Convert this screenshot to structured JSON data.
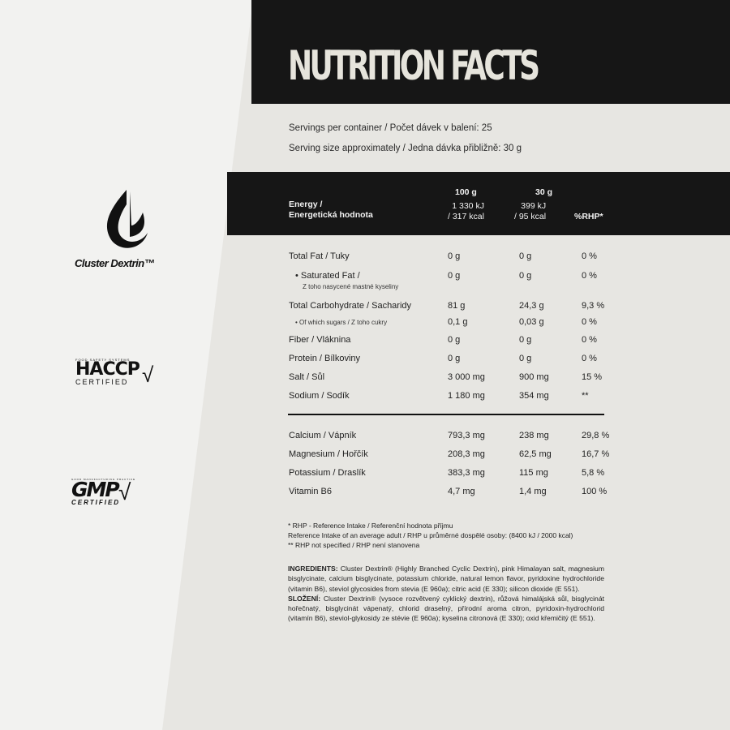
{
  "title": "NUTRITION FACTS",
  "servings_per_container": "Servings per container / Počet dávek v balení: 25",
  "serving_size": "Serving size approximately / Jedna dávka přibližně: 30 g",
  "header": {
    "energy_line1": "Energy /",
    "energy_line2": "Energetická hodnota",
    "col_100g": "100 g",
    "col_30g": "30 g",
    "energy_100g_kj": "1 330 kJ",
    "energy_100g_kcal": "/ 317 kcal",
    "energy_30g_kj": "399 kJ",
    "energy_30g_kcal": "/ 95 kcal",
    "col_rhp": "%RHP*"
  },
  "rows": [
    {
      "label": "Total Fat / Tuky",
      "v100": "0 g",
      "v30": "0 g",
      "rhp": "0 %"
    },
    {
      "label": "• Saturated Fat /",
      "sublabel": "Z toho nasycené mastné kyseliny",
      "v100": "0 g",
      "v30": "0 g",
      "rhp": "0 %"
    },
    {
      "label": "Total Carbohydrate / Sacharidy",
      "v100": "81 g",
      "v30": "24,3 g",
      "rhp": "9,3 %"
    },
    {
      "label": "• Of which sugars / Z toho cukry",
      "v100": "0,1 g",
      "v30": "0,03 g",
      "rhp": "0 %"
    },
    {
      "label": "Fiber / Vláknina",
      "v100": "0 g",
      "v30": "0 g",
      "rhp": "0 %"
    },
    {
      "label": "Protein / Bílkoviny",
      "v100": "0 g",
      "v30": "0 g",
      "rhp": "0 %"
    },
    {
      "label": "Salt / Sůl",
      "v100": "3 000 mg",
      "v30": "900 mg",
      "rhp": "15 %"
    },
    {
      "label": "Sodium / Sodík",
      "v100": "1 180 mg",
      "v30": "354 mg",
      "rhp": "**"
    },
    {
      "label": "Calcium / Vápník",
      "v100": "793,3 mg",
      "v30": "238 mg",
      "rhp": "29,8 %"
    },
    {
      "label": "Magnesium / Hořčík",
      "v100": "208,3 mg",
      "v30": "62,5 mg",
      "rhp": "16,7 %"
    },
    {
      "label": "Potassium / Draslík",
      "v100": "383,3 mg",
      "v30": "115 mg",
      "rhp": "5,8 %"
    },
    {
      "label": "Vitamin B6",
      "v100": "4,7 mg",
      "v30": "1,4 mg",
      "rhp": "100 %"
    }
  ],
  "notes": [
    "* RHP - Reference Intake / Referenční hodnota příjmu",
    "Reference Intake of an average adult / RHP u průměrné dospělé osoby: (8400 kJ / 2000 kcal)",
    "** RHP not specified / RHP není stanovena"
  ],
  "ingredients": {
    "label": "INGREDIENTS:",
    "text": " Cluster Dextrin® (Highly Branched Cyclic Dextrin), pink Himalayan salt, magnesium bisglycinate, calcium bisglycinate, potassium chloride, natural lemon flavor, pyridoxine hydrochloride (vitamin B6), steviol glycosides from stevia (E 960a); citric acid (E 330); silicon dioxide (E 551)."
  },
  "slozeni": {
    "label": "SLOŽENÍ:",
    "text": " Cluster Dextrin® (vysoce rozvětvený cyklický dextrin), růžová himalájská sůl, bisglycinát hořečnatý, bisglycinát vápenatý, chlorid draselný, přírodní aroma citron, pyridoxin-hydrochlorid (vitamín B6), steviol-glykosidy ze stévie (E 960a); kyselina citronová (E 330); oxid křemičitý (E 551)."
  },
  "logos": {
    "cluster": "Cluster Dextrin™",
    "haccp_top": "FOOD SAFETY SYSTEMS",
    "haccp": "HACCP",
    "haccp_cert": "CERTIFIED",
    "gmp_top": "GOOD MANUFACTURING PRACTICE",
    "gmp": "GMP",
    "gmp_cert": "CERTIFIED"
  }
}
